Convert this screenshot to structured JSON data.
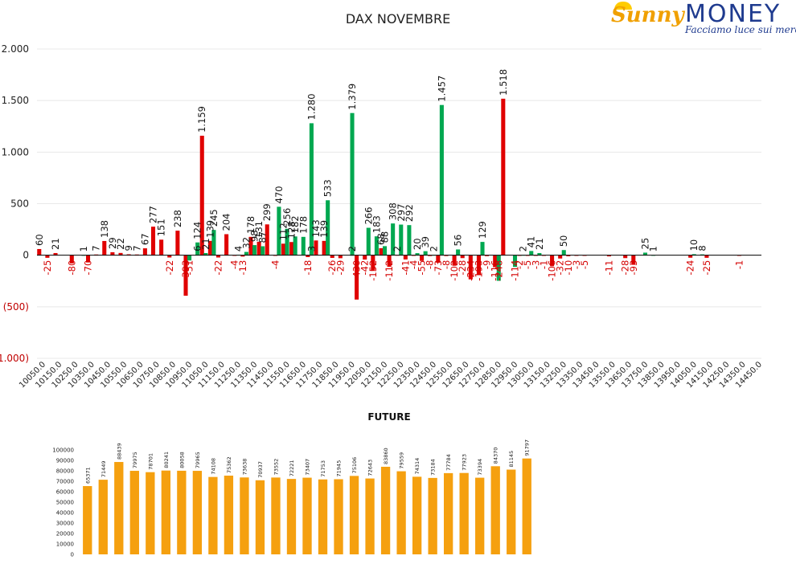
{
  "logo": {
    "brand_part1": "Sunny",
    "brand_part2": "MONEY",
    "tagline": "Facciamo luce sui mercati"
  },
  "chart_data": [
    {
      "type": "bar",
      "title": "DAX NOVEMBRE",
      "ylim": [
        -1000,
        2000
      ],
      "yticks": [
        {
          "value": 2000,
          "label": "2.000"
        },
        {
          "value": 1500,
          "label": "1.500"
        },
        {
          "value": 1000,
          "label": "1.000"
        },
        {
          "value": 500,
          "label": "500"
        },
        {
          "value": 0,
          "label": "0"
        },
        {
          "value": -500,
          "label": "(500)"
        },
        {
          "value": -1000,
          "label": "(1.000)"
        }
      ],
      "grid": true,
      "x_range": [
        10050,
        14450
      ],
      "xticks": [
        "10050.0",
        "10150.0",
        "10250.0",
        "10350.0",
        "10450.0",
        "10550.0",
        "10650.0",
        "10750.0",
        "10850.0",
        "10950.0",
        "11050.0",
        "11150.0",
        "11250.0",
        "11350.0",
        "11450.0",
        "11550.0",
        "11650.0",
        "11750.0",
        "11850.0",
        "11950.0",
        "12050.0",
        "12150.0",
        "12250.0",
        "12350.0",
        "12450.0",
        "12550.0",
        "12650.0",
        "12750.0",
        "12850.0",
        "12950.0",
        "13050.0",
        "13150.0",
        "13250.0",
        "13350.0",
        "13450.0",
        "13550.0",
        "13650.0",
        "13750.0",
        "13850.0",
        "13950.0",
        "14050.0",
        "14150.0",
        "14250.0",
        "14350.0",
        "14450.0"
      ],
      "colors": {
        "red": "#e00000",
        "green": "#00a850"
      },
      "series": [
        {
          "color": "red",
          "points": [
            {
              "x": 10050,
              "y": 60,
              "label": "60"
            },
            {
              "x": 10100,
              "y": -25,
              "label": "-25"
            },
            {
              "x": 10150,
              "y": 21,
              "label": "21"
            },
            {
              "x": 10250,
              "y": -80,
              "label": "-80"
            },
            {
              "x": 10350,
              "y": -70,
              "label": "-70"
            },
            {
              "x": 10400,
              "y": 7,
              "label": "7"
            },
            {
              "x": 10450,
              "y": 138,
              "label": "138"
            },
            {
              "x": 10500,
              "y": 29,
              "label": "29"
            },
            {
              "x": 10550,
              "y": 22,
              "label": "22"
            },
            {
              "x": 10600,
              "y": 9,
              "label": "9"
            },
            {
              "x": 10650,
              "y": 7,
              "label": "7"
            },
            {
              "x": 10700,
              "y": 67,
              "label": "67"
            },
            {
              "x": 10750,
              "y": 277,
              "label": "277"
            },
            {
              "x": 10800,
              "y": 151,
              "label": "151"
            },
            {
              "x": 10850,
              "y": -22,
              "label": "-22"
            },
            {
              "x": 10900,
              "y": 238,
              "label": "238"
            },
            {
              "x": 10950,
              "y": -393,
              "label": "-393"
            },
            {
              "x": 11050,
              "y": 1159,
              "label": "1.159"
            },
            {
              "x": 11100,
              "y": 139,
              "label": "139"
            },
            {
              "x": 11150,
              "y": -22,
              "label": "-22"
            },
            {
              "x": 11200,
              "y": 204,
              "label": "204"
            },
            {
              "x": 11250,
              "y": -4,
              "label": "-4"
            },
            {
              "x": 11300,
              "y": -13,
              "label": "-13"
            },
            {
              "x": 11350,
              "y": 178,
              "label": "178"
            },
            {
              "x": 11400,
              "y": 131,
              "label": "131"
            },
            {
              "x": 11450,
              "y": 299,
              "label": "299"
            },
            {
              "x": 11500,
              "y": -4,
              "label": "-4"
            },
            {
              "x": 11550,
              "y": 112,
              "label": "112"
            },
            {
              "x": 11600,
              "y": 128,
              "label": "128"
            },
            {
              "x": 11700,
              "y": -18,
              "label": "-18"
            },
            {
              "x": 11750,
              "y": 143,
              "label": "143"
            },
            {
              "x": 11800,
              "y": 139,
              "label": "139"
            },
            {
              "x": 11850,
              "y": -26,
              "label": "-26"
            },
            {
              "x": 11900,
              "y": -29,
              "label": "-29"
            },
            {
              "x": 12000,
              "y": -430,
              "label": "-430"
            },
            {
              "x": 12050,
              "y": -42,
              "label": "-42"
            },
            {
              "x": 12100,
              "y": -152,
              "label": "-152"
            },
            {
              "x": 12150,
              "y": 68,
              "label": "68"
            },
            {
              "x": 12200,
              "y": -112,
              "label": "-112"
            },
            {
              "x": 12250,
              "y": 2,
              "label": "2"
            },
            {
              "x": 12300,
              "y": -41,
              "label": "-41"
            },
            {
              "x": 12350,
              "y": -4,
              "label": "-4"
            },
            {
              "x": 12400,
              "y": -55,
              "label": "-55"
            },
            {
              "x": 12450,
              "y": -8,
              "label": "-8"
            },
            {
              "x": 12500,
              "y": -73,
              "label": "-73"
            },
            {
              "x": 12550,
              "y": -8,
              "label": "-8"
            },
            {
              "x": 12600,
              "y": -102,
              "label": "-102"
            },
            {
              "x": 12650,
              "y": -28,
              "label": "-28"
            },
            {
              "x": 12700,
              "y": -234,
              "label": "-234"
            },
            {
              "x": 12750,
              "y": -193,
              "label": "-193"
            },
            {
              "x": 12800,
              "y": -9,
              "label": "-9"
            },
            {
              "x": 12850,
              "y": -116,
              "label": "-116"
            },
            {
              "x": 12900,
              "y": 1518,
              "label": "1.518"
            },
            {
              "x": 13000,
              "y": -2,
              "label": "-2"
            },
            {
              "x": 13050,
              "y": -5,
              "label": "-5"
            },
            {
              "x": 13100,
              "y": -3,
              "label": "-3"
            },
            {
              "x": 13150,
              "y": -1,
              "label": "-1"
            },
            {
              "x": 13200,
              "y": -106,
              "label": "-106"
            },
            {
              "x": 13250,
              "y": -32,
              "label": "-32"
            },
            {
              "x": 13300,
              "y": -10,
              "label": "-10"
            },
            {
              "x": 13350,
              "y": -3,
              "label": "-3"
            },
            {
              "x": 13400,
              "y": -5,
              "label": "-5"
            },
            {
              "x": 13550,
              "y": -11,
              "label": "-11"
            },
            {
              "x": 13650,
              "y": -28,
              "label": "-28"
            },
            {
              "x": 13700,
              "y": -93,
              "label": "-93"
            },
            {
              "x": 14050,
              "y": -24,
              "label": "-24"
            },
            {
              "x": 14150,
              "y": -25,
              "label": "-25"
            },
            {
              "x": 14350,
              "y": -1,
              "label": "-1"
            }
          ]
        },
        {
          "color": "green",
          "points": [
            {
              "x": 10300,
              "y": 1,
              "label": "1"
            },
            {
              "x": 10950,
              "y": -51,
              "label": "-51"
            },
            {
              "x": 11000,
              "y": 6,
              "label": "6"
            },
            {
              "x": 11000,
              "y": 124,
              "label": "124"
            },
            {
              "x": 11050,
              "y": 21,
              "label": "21"
            },
            {
              "x": 11100,
              "y": 245,
              "label": "245"
            },
            {
              "x": 11250,
              "y": 4,
              "label": "4"
            },
            {
              "x": 11300,
              "y": 32,
              "label": "32"
            },
            {
              "x": 11350,
              "y": 98,
              "label": "98"
            },
            {
              "x": 11400,
              "y": 87,
              "label": "87"
            },
            {
              "x": 11500,
              "y": 470,
              "label": "470"
            },
            {
              "x": 11550,
              "y": 256,
              "label": "256"
            },
            {
              "x": 11600,
              "y": 182,
              "label": "182"
            },
            {
              "x": 11650,
              "y": 178,
              "label": "178"
            },
            {
              "x": 11700,
              "y": 3,
              "label": "3"
            },
            {
              "x": 11700,
              "y": 1280,
              "label": "1.280"
            },
            {
              "x": 11800,
              "y": 533,
              "label": "533"
            },
            {
              "x": 11950,
              "y": 2,
              "label": "2"
            },
            {
              "x": 11950,
              "y": 1379,
              "label": "1.379"
            },
            {
              "x": 12050,
              "y": 266,
              "label": "266"
            },
            {
              "x": 12100,
              "y": 183,
              "label": "183"
            },
            {
              "x": 12150,
              "y": 88,
              "label": "88"
            },
            {
              "x": 12200,
              "y": 308,
              "label": "308"
            },
            {
              "x": 12250,
              "y": 297,
              "label": "297"
            },
            {
              "x": 12300,
              "y": 292,
              "label": "292"
            },
            {
              "x": 12350,
              "y": 20,
              "label": "20"
            },
            {
              "x": 12400,
              "y": 39,
              "label": "39"
            },
            {
              "x": 12450,
              "y": 2,
              "label": "2"
            },
            {
              "x": 12500,
              "y": 1457,
              "label": "1.457"
            },
            {
              "x": 12600,
              "y": 56,
              "label": "56"
            },
            {
              "x": 12750,
              "y": 129,
              "label": "129"
            },
            {
              "x": 12850,
              "y": -248,
              "label": "-248"
            },
            {
              "x": 12950,
              "y": -114,
              "label": "-114"
            },
            {
              "x": 13000,
              "y": 2,
              "label": "2"
            },
            {
              "x": 13050,
              "y": 41,
              "label": "41"
            },
            {
              "x": 13100,
              "y": 21,
              "label": "21"
            },
            {
              "x": 13250,
              "y": 50,
              "label": "50"
            },
            {
              "x": 13750,
              "y": 25,
              "label": "25"
            },
            {
              "x": 13800,
              "y": 1,
              "label": "1"
            },
            {
              "x": 14050,
              "y": 10,
              "label": "10"
            },
            {
              "x": 14100,
              "y": 8,
              "label": "8"
            }
          ]
        }
      ]
    },
    {
      "type": "bar",
      "title": "FUTURE",
      "ylim": [
        0,
        100000
      ],
      "yticks": [
        "0",
        "10000",
        "20000",
        "30000",
        "40000",
        "50000",
        "60000",
        "70000",
        "80000",
        "90000",
        "100000"
      ],
      "color": "#f5a00f",
      "values": [
        65371,
        71449,
        88439,
        79975,
        78701,
        80241,
        80058,
        79965,
        74108,
        75362,
        73638,
        70937,
        73552,
        72221,
        73407,
        71753,
        71945,
        75106,
        72643,
        83860,
        79559,
        74314,
        73184,
        77784,
        77923,
        73394,
        84370,
        81145,
        91797
      ],
      "labels": [
        "65371",
        "71449",
        "88439",
        "79975",
        "78701",
        "80241",
        "80058",
        "79965",
        "74108",
        "75362",
        "73638",
        "70937",
        "73552",
        "72221",
        "73407",
        "71753",
        "71945",
        "75106",
        "72643",
        "83860",
        "79559",
        "74314",
        "73184",
        "77784",
        "77923",
        "73394",
        "84370",
        "81145",
        "91797"
      ]
    }
  ]
}
